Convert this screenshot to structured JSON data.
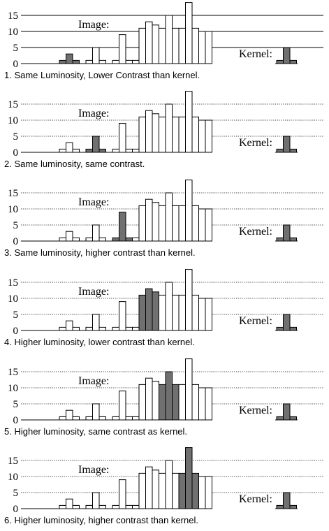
{
  "colors": {
    "image_bar_fill": "#ffffff",
    "highlight_bar_fill": "#707070",
    "kernel_bar_fill": "#707070",
    "line": "#000000"
  },
  "chart_data": [
    {
      "type": "bar",
      "panel": 1,
      "caption": "1. Same Luminosity, Lower Contrast than kernel.",
      "image_label": "Image:",
      "kernel_label": "Kernel:",
      "yticks": [
        0,
        5,
        10,
        15
      ],
      "ylim": [
        0,
        20
      ],
      "grid": "solid",
      "image_values": [
        0,
        0,
        1,
        3,
        1,
        0,
        1,
        5,
        1,
        0,
        1,
        9,
        1,
        1,
        11,
        13,
        12,
        11,
        15,
        11,
        11,
        19,
        11,
        10,
        10
      ],
      "highlight_indices": [
        2,
        3,
        4
      ],
      "kernel_values": [
        1,
        5,
        1
      ]
    },
    {
      "type": "bar",
      "panel": 2,
      "caption": "2. Same luminosity, same contrast.",
      "image_label": "Image:",
      "kernel_label": "Kernel:",
      "yticks": [
        0,
        5,
        10,
        15
      ],
      "ylim": [
        0,
        20
      ],
      "grid": "dotted",
      "image_values": [
        0,
        0,
        1,
        3,
        1,
        0,
        1,
        5,
        1,
        0,
        1,
        9,
        1,
        1,
        11,
        13,
        12,
        11,
        15,
        11,
        11,
        19,
        11,
        10,
        10
      ],
      "highlight_indices": [
        6,
        7,
        8
      ],
      "kernel_values": [
        1,
        5,
        1
      ]
    },
    {
      "type": "bar",
      "panel": 3,
      "caption": "3. Same luminosity, higher contrast than kernel.",
      "image_label": "Image:",
      "kernel_label": "Kernel:",
      "yticks": [
        0,
        5,
        10,
        15
      ],
      "ylim": [
        0,
        20
      ],
      "grid": "dotted",
      "image_values": [
        0,
        0,
        1,
        3,
        1,
        0,
        1,
        5,
        1,
        0,
        1,
        9,
        1,
        1,
        11,
        13,
        12,
        11,
        15,
        11,
        11,
        19,
        11,
        10,
        10
      ],
      "highlight_indices": [
        10,
        11,
        12
      ],
      "kernel_values": [
        1,
        5,
        1
      ]
    },
    {
      "type": "bar",
      "panel": 4,
      "caption": "4. Higher luminosity, lower contrast than kernel.",
      "image_label": "Image:",
      "kernel_label": "Kernel:",
      "yticks": [
        0,
        5,
        10,
        15
      ],
      "ylim": [
        0,
        20
      ],
      "grid": "dotted",
      "image_values": [
        0,
        0,
        1,
        3,
        1,
        0,
        1,
        5,
        1,
        0,
        1,
        9,
        1,
        1,
        11,
        13,
        12,
        11,
        15,
        11,
        11,
        19,
        11,
        10,
        10
      ],
      "highlight_indices": [
        14,
        15,
        16
      ],
      "kernel_values": [
        1,
        5,
        1
      ]
    },
    {
      "type": "bar",
      "panel": 5,
      "caption": "5. Higher luminosity, same contrast as kernel.",
      "image_label": "Image:",
      "kernel_label": "Kernel:",
      "yticks": [
        0,
        5,
        10,
        15
      ],
      "ylim": [
        0,
        20
      ],
      "grid": "dotted",
      "image_values": [
        0,
        0,
        1,
        3,
        1,
        0,
        1,
        5,
        1,
        0,
        1,
        9,
        1,
        1,
        11,
        13,
        12,
        11,
        15,
        11,
        11,
        19,
        11,
        10,
        10
      ],
      "highlight_indices": [
        17,
        18,
        19
      ],
      "kernel_values": [
        1,
        5,
        1
      ]
    },
    {
      "type": "bar",
      "panel": 6,
      "caption": "6. Higher luminosity, higher contrast than kernel.",
      "image_label": "Image:",
      "kernel_label": "Kernel:",
      "yticks": [
        0,
        5,
        10,
        15
      ],
      "ylim": [
        0,
        20
      ],
      "grid": "dotted",
      "image_values": [
        0,
        0,
        1,
        3,
        1,
        0,
        1,
        5,
        1,
        0,
        1,
        9,
        1,
        1,
        11,
        13,
        12,
        11,
        15,
        11,
        11,
        19,
        11,
        10,
        10
      ],
      "highlight_indices": [
        20,
        21,
        22
      ],
      "kernel_values": [
        1,
        5,
        1
      ]
    }
  ]
}
